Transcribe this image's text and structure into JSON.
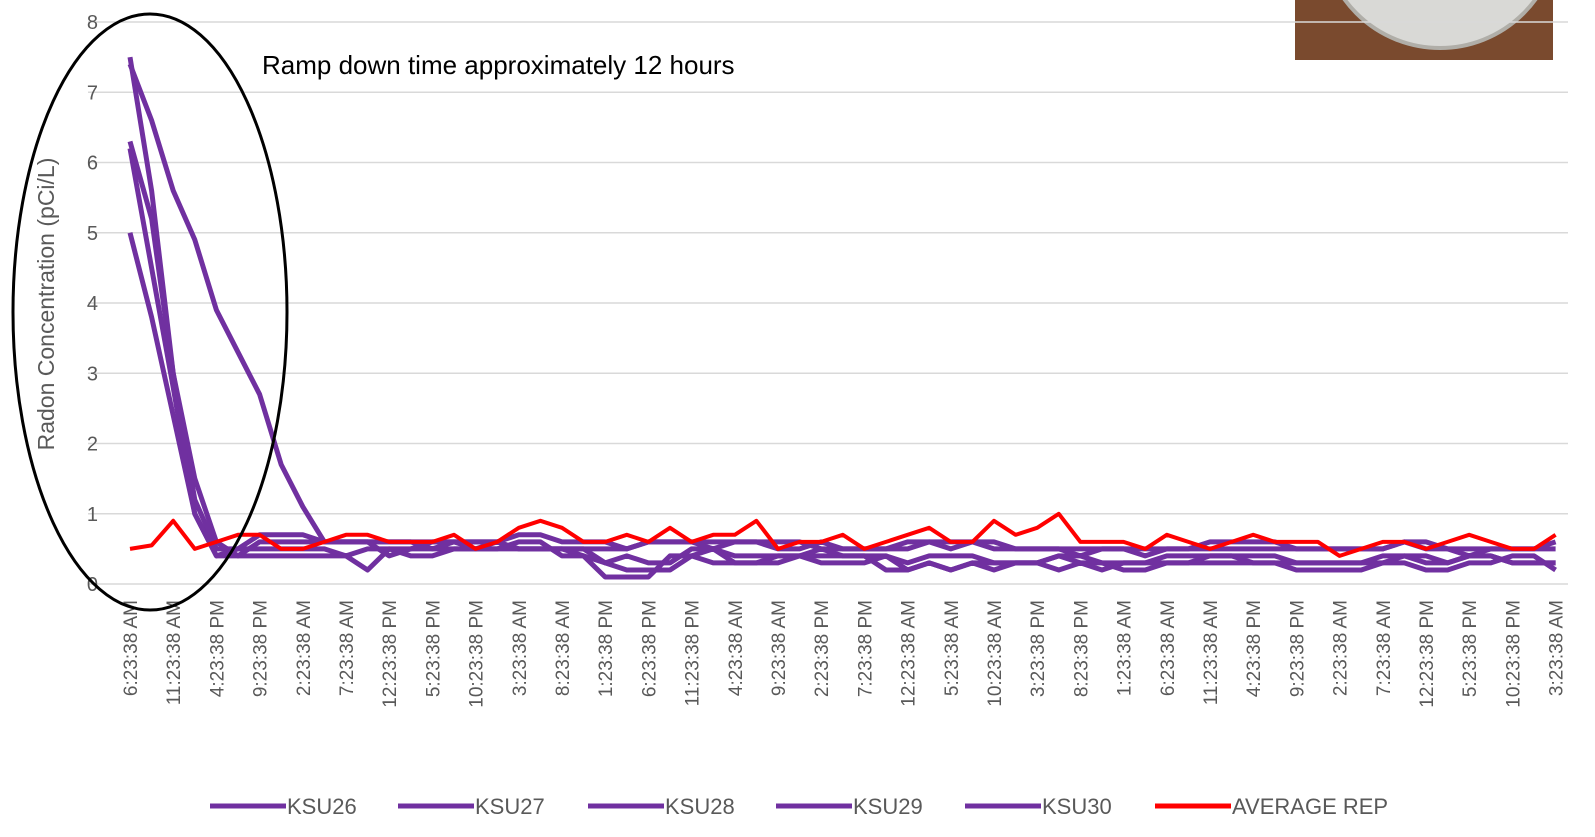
{
  "chart_data": {
    "type": "line",
    "y_label": "Radon Concentration (pCi/L)",
    "annotation": "Ramp down time approximately 12 hours",
    "ylim": [
      0,
      8
    ],
    "yticks": [
      0,
      1,
      2,
      3,
      4,
      5,
      6,
      7,
      8
    ],
    "grid": true,
    "legend": "bottom",
    "categories": [
      "6:23:38 AM",
      null,
      "11:23:38 AM",
      null,
      "4:23:38 PM",
      null,
      "9:23:38 PM",
      null,
      "2:23:38 AM",
      null,
      "7:23:38 AM",
      null,
      "12:23:38 PM",
      null,
      "5:23:38 PM",
      null,
      "10:23:38 PM",
      null,
      "3:23:38 AM",
      null,
      "8:23:38 AM",
      null,
      "1:23:38 PM",
      null,
      "6:23:38 PM",
      null,
      "11:23:38 PM",
      null,
      "4:23:38 AM",
      null,
      "9:23:38 AM",
      null,
      "2:23:38 PM",
      null,
      "7:23:38 PM",
      null,
      "12:23:38 AM",
      null,
      "5:23:38 AM",
      null,
      "10:23:38 AM",
      null,
      "3:23:38 PM",
      null,
      "8:23:38 PM",
      null,
      "1:23:38 AM",
      null,
      "6:23:38 AM",
      null,
      "11:23:38 AM",
      null,
      "4:23:38 PM",
      null,
      "9:23:38 PM",
      null,
      "2:23:38 AM",
      null,
      "7:23:38 AM",
      null,
      "12:23:38 PM",
      null,
      "5:23:38 PM",
      null,
      "10:23:38 PM",
      null,
      "3:23:38 AM"
    ],
    "series": [
      {
        "name": "KSU26",
        "color": "#7030a0",
        "values": [
          7.4,
          6.6,
          5.6,
          4.9,
          3.9,
          3.3,
          2.7,
          1.7,
          1.1,
          0.6,
          0.6,
          0.6,
          0.6,
          0.6,
          0.6,
          0.6,
          0.6,
          0.6,
          0.7,
          0.7,
          0.6,
          0.6,
          0.6,
          0.5,
          0.6,
          0.6,
          0.6,
          0.6,
          0.6,
          0.6,
          0.5,
          0.5,
          0.6,
          0.5,
          0.5,
          0.5,
          0.5,
          0.6,
          0.6,
          0.6,
          0.5,
          0.5,
          0.5,
          0.5,
          0.5,
          0.5,
          0.5,
          0.5,
          0.5,
          0.5,
          0.6,
          0.6,
          0.6,
          0.6,
          0.5,
          0.5,
          0.5,
          0.5,
          0.5,
          0.6,
          0.6,
          0.5,
          0.5,
          0.5,
          0.5,
          0.5,
          0.5
        ]
      },
      {
        "name": "KSU27",
        "color": "#7030a0",
        "values": [
          7.5,
          5.6,
          3.0,
          1.2,
          0.5,
          0.5,
          0.7,
          0.7,
          0.7,
          0.6,
          0.6,
          0.6,
          0.4,
          0.5,
          0.6,
          0.6,
          0.5,
          0.5,
          0.6,
          0.6,
          0.4,
          0.4,
          0.3,
          0.4,
          0.3,
          0.3,
          0.5,
          0.5,
          0.4,
          0.4,
          0.4,
          0.4,
          0.4,
          0.4,
          0.4,
          0.4,
          0.3,
          0.4,
          0.4,
          0.4,
          0.3,
          0.3,
          0.3,
          0.4,
          0.4,
          0.3,
          0.3,
          0.3,
          0.4,
          0.4,
          0.4,
          0.4,
          0.4,
          0.4,
          0.3,
          0.3,
          0.3,
          0.3,
          0.3,
          0.4,
          0.4,
          0.3,
          0.4,
          0.4,
          0.3,
          0.3,
          0.3
        ]
      },
      {
        "name": "KSU28",
        "color": "#7030a0",
        "values": [
          6.3,
          5.2,
          3.0,
          1.5,
          0.6,
          0.4,
          0.4,
          0.4,
          0.4,
          0.4,
          0.4,
          0.2,
          0.5,
          0.5,
          0.5,
          0.5,
          0.5,
          0.5,
          0.5,
          0.5,
          0.5,
          0.5,
          0.3,
          0.2,
          0.2,
          0.2,
          0.4,
          0.5,
          0.3,
          0.3,
          0.4,
          0.4,
          0.5,
          0.4,
          0.4,
          0.2,
          0.2,
          0.3,
          0.2,
          0.3,
          0.2,
          0.3,
          0.3,
          0.4,
          0.3,
          0.3,
          0.2,
          0.2,
          0.3,
          0.3,
          0.4,
          0.4,
          0.3,
          0.3,
          0.2,
          0.2,
          0.2,
          0.2,
          0.3,
          0.3,
          0.2,
          0.2,
          0.3,
          0.3,
          0.4,
          0.4,
          0.2
        ]
      },
      {
        "name": "KSU29",
        "color": "#7030a0",
        "values": [
          5.0,
          3.8,
          2.4,
          1.0,
          0.4,
          0.5,
          0.5,
          0.5,
          0.5,
          0.5,
          0.4,
          0.5,
          0.5,
          0.4,
          0.4,
          0.5,
          0.5,
          0.6,
          0.5,
          0.5,
          0.5,
          0.4,
          0.1,
          0.1,
          0.1,
          0.4,
          0.4,
          0.3,
          0.3,
          0.3,
          0.3,
          0.4,
          0.3,
          0.3,
          0.3,
          0.4,
          0.2,
          0.3,
          0.2,
          0.3,
          0.3,
          0.3,
          0.3,
          0.2,
          0.3,
          0.2,
          0.3,
          0.3,
          0.3,
          0.3,
          0.3,
          0.3,
          0.3,
          0.3,
          0.3,
          0.3,
          0.3,
          0.3,
          0.4,
          0.4,
          0.3,
          0.3,
          0.4,
          0.4,
          0.3,
          0.3,
          0.3
        ]
      },
      {
        "name": "KSU30",
        "color": "#7030a0",
        "values": [
          6.2,
          4.5,
          2.8,
          1.0,
          0.4,
          0.4,
          0.6,
          0.6,
          0.6,
          0.6,
          0.6,
          0.6,
          0.6,
          0.6,
          0.5,
          0.6,
          0.6,
          0.6,
          0.5,
          0.5,
          0.5,
          0.5,
          0.5,
          0.5,
          0.6,
          0.6,
          0.6,
          0.5,
          0.6,
          0.6,
          0.6,
          0.6,
          0.5,
          0.5,
          0.5,
          0.5,
          0.6,
          0.6,
          0.5,
          0.6,
          0.6,
          0.5,
          0.5,
          0.5,
          0.4,
          0.5,
          0.5,
          0.4,
          0.5,
          0.5,
          0.5,
          0.5,
          0.5,
          0.5,
          0.5,
          0.5,
          0.5,
          0.5,
          0.5,
          0.6,
          0.5,
          0.5,
          0.4,
          0.5,
          0.5,
          0.5,
          0.6
        ]
      },
      {
        "name": "AVERAGE REP",
        "color": "#ff0000",
        "values": [
          0.5,
          0.55,
          0.9,
          0.5,
          0.6,
          0.7,
          0.7,
          0.5,
          0.5,
          0.6,
          0.7,
          0.7,
          0.6,
          0.6,
          0.6,
          0.7,
          0.5,
          0.6,
          0.8,
          0.9,
          0.8,
          0.6,
          0.6,
          0.7,
          0.6,
          0.8,
          0.6,
          0.7,
          0.7,
          0.9,
          0.5,
          0.6,
          0.6,
          0.7,
          0.5,
          0.6,
          0.7,
          0.8,
          0.6,
          0.6,
          0.9,
          0.7,
          0.8,
          1.0,
          0.6,
          0.6,
          0.6,
          0.5,
          0.7,
          0.6,
          0.5,
          0.6,
          0.7,
          0.6,
          0.6,
          0.6,
          0.4,
          0.5,
          0.6,
          0.6,
          0.5,
          0.6,
          0.7,
          0.6,
          0.5,
          0.5,
          0.7
        ]
      }
    ]
  }
}
